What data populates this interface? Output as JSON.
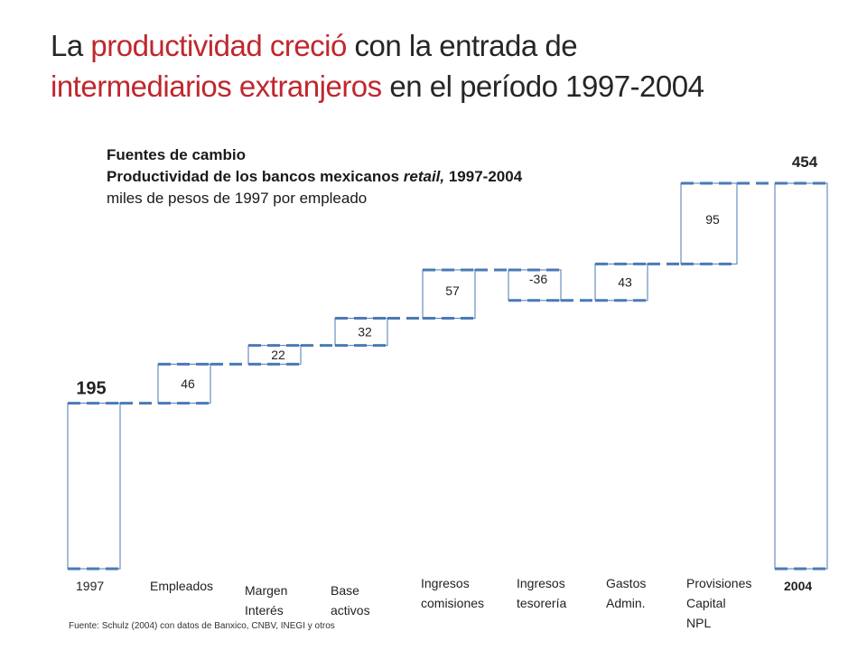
{
  "title": {
    "parts": [
      {
        "text": "La ",
        "highlight": false
      },
      {
        "text": "productividad creció",
        "highlight": true
      },
      {
        "text": " con la entrada de ",
        "highlight": false
      },
      {
        "text": "intermediarios extranjeros",
        "highlight": true
      },
      {
        "text": " en el período 1997-2004",
        "highlight": false
      }
    ]
  },
  "subtitle": {
    "line1": "Fuentes de cambio",
    "line2_main": "Productividad de los bancos mexicanos ",
    "line2_italic": "retail,",
    "line2_end": " 1997-2004",
    "line3": "miles de pesos de 1997 por empleado"
  },
  "colors": {
    "highlight": "#c0272d",
    "bar_edge": "#4a7ab5",
    "bar_fill": "#ffffff",
    "text": "#262626"
  },
  "chart_data": {
    "type": "bar",
    "subtype": "waterfall",
    "categories": [
      {
        "lines": [
          "1997"
        ],
        "bold": false
      },
      {
        "lines": [
          "Empleados"
        ],
        "bold": false
      },
      {
        "lines": [
          "Margen",
          "Interés"
        ],
        "bold": false
      },
      {
        "lines": [
          "Base",
          "activos"
        ],
        "bold": false
      },
      {
        "lines": [
          "Ingresos",
          "comisiones"
        ],
        "bold": false
      },
      {
        "lines": [
          "Ingresos",
          "tesorería"
        ],
        "bold": false
      },
      {
        "lines": [
          "Gastos",
          "Admin."
        ],
        "bold": false
      },
      {
        "lines": [
          "Provisiones",
          "Capital",
          "NPL"
        ],
        "bold": false
      },
      {
        "lines": [
          "2004"
        ],
        "bold": true
      }
    ],
    "values": [
      195,
      46,
      22,
      32,
      57,
      -36,
      43,
      95,
      454
    ],
    "labels": [
      "195",
      "46",
      "22",
      "32",
      "57",
      "-36",
      "43",
      "95",
      "454"
    ],
    "kinds": [
      "total",
      "delta",
      "delta",
      "delta",
      "delta",
      "delta",
      "delta",
      "delta",
      "total"
    ],
    "connectors": "dashed",
    "grid": false,
    "legend": "none"
  },
  "footnote": "Fuente: Schulz (2004) con datos de Banxico, CNBV, INEGI y otros"
}
